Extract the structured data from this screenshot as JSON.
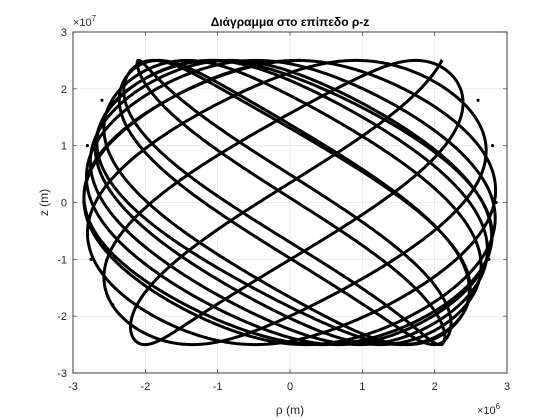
{
  "chart_data": {
    "type": "line",
    "title": "Διάγραμμα στο επίπεδο ρ-z",
    "xlabel": "ρ (m)",
    "ylabel": "z (m)",
    "xlim": [
      -3000000,
      3000000
    ],
    "ylim": [
      -30000000,
      30000000
    ],
    "x_ticks": [
      -3000000,
      -2000000,
      -1000000,
      0,
      1000000,
      2000000,
      3000000
    ],
    "x_tick_labels": [
      "-3",
      "-2",
      "-1",
      "0",
      "1",
      "2",
      "3"
    ],
    "y_ticks": [
      -30000000,
      -20000000,
      -10000000,
      0,
      10000000,
      20000000,
      30000000
    ],
    "y_tick_labels": [
      "-3",
      "-2",
      "-1",
      "0",
      "1",
      "2",
      "3"
    ],
    "x_exponent_base": "×10",
    "x_exponent_power": "6",
    "y_exponent_base": "×10",
    "y_exponent_power": "7",
    "grid": true,
    "line_color": "#000000",
    "series": [
      {
        "description_values": {
          "z_amplitude": 25000000,
          "rho_max_at_z0": 2850000,
          "rho_min_at_zmax": 2100000,
          "bounce_half_periods": 24
        },
        "x": [
          -2100000,
          -2600000,
          2800000,
          -2850000,
          2750000,
          -2450000,
          2100000,
          2450000,
          -2750000,
          2850000,
          -2800000,
          2600000,
          -2100000,
          -2600000,
          2800000,
          -2850000,
          2750000,
          -2450000,
          2100000,
          2450000,
          -2750000,
          2850000,
          -2800000,
          2600000,
          -2100000
        ],
        "y": [
          25000000,
          18000000,
          10000000,
          0,
          -10000000,
          -18000000,
          -25000000,
          -18000000,
          -10000000,
          0,
          10000000,
          18000000,
          25000000,
          18000000,
          10000000,
          0,
          -10000000,
          -18000000,
          -25000000,
          -18000000,
          -10000000,
          0,
          10000000,
          18000000,
          25000000
        ]
      }
    ]
  }
}
